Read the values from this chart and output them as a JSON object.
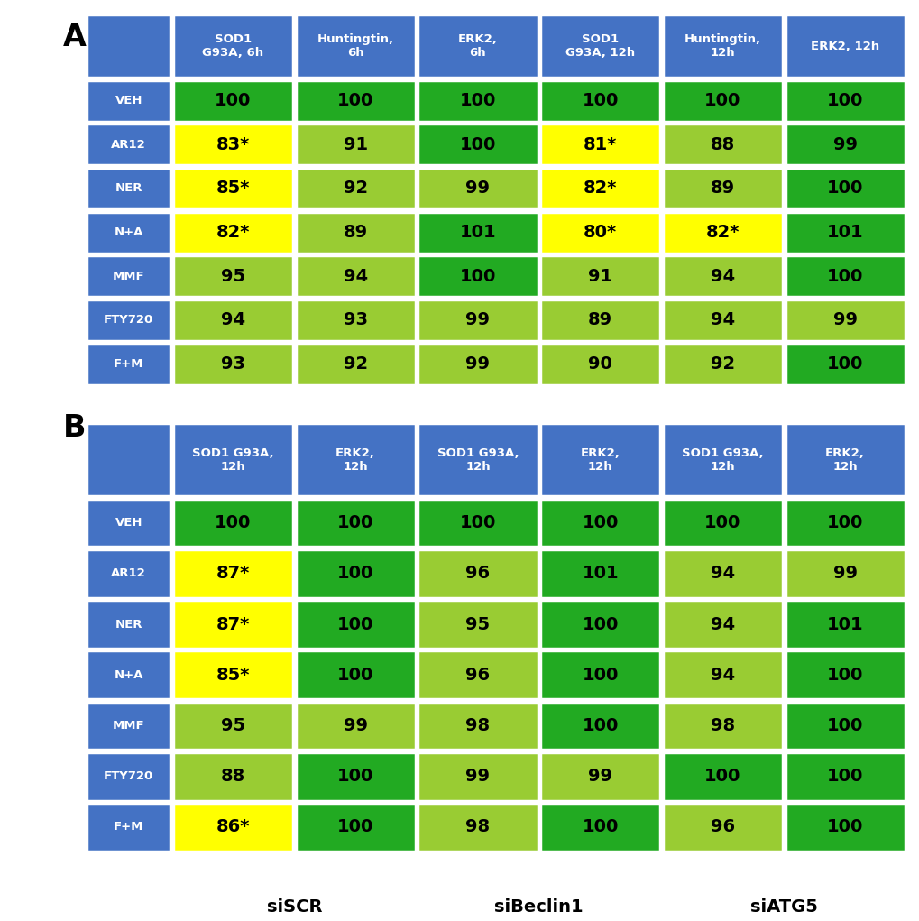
{
  "table_A": {
    "headers": [
      "SOD1\nG93A, 6h",
      "Huntingtin,\n6h",
      "ERK2,\n6h",
      "SOD1\nG93A, 12h",
      "Huntingtin,\n12h",
      "ERK2, 12h"
    ],
    "row_labels": [
      "VEH",
      "AR12",
      "NER",
      "N+A",
      "MMF",
      "FTY720",
      "F+M"
    ],
    "values": [
      [
        "100",
        "100",
        "100",
        "100",
        "100",
        "100"
      ],
      [
        "83*",
        "91",
        "100",
        "81*",
        "88",
        "99"
      ],
      [
        "85*",
        "92",
        "99",
        "82*",
        "89",
        "100"
      ],
      [
        "82*",
        "89",
        "101",
        "80*",
        "82*",
        "101"
      ],
      [
        "95",
        "94",
        "100",
        "91",
        "94",
        "100"
      ],
      [
        "94",
        "93",
        "99",
        "89",
        "94",
        "99"
      ],
      [
        "93",
        "92",
        "99",
        "90",
        "92",
        "100"
      ]
    ],
    "colors": [
      [
        "#22AA22",
        "#22AA22",
        "#22AA22",
        "#22AA22",
        "#22AA22",
        "#22AA22"
      ],
      [
        "#FFFF00",
        "#99CC33",
        "#22AA22",
        "#FFFF00",
        "#99CC33",
        "#22AA22"
      ],
      [
        "#FFFF00",
        "#99CC33",
        "#99CC33",
        "#FFFF00",
        "#99CC33",
        "#22AA22"
      ],
      [
        "#FFFF00",
        "#99CC33",
        "#22AA22",
        "#FFFF00",
        "#FFFF00",
        "#22AA22"
      ],
      [
        "#99CC33",
        "#99CC33",
        "#22AA22",
        "#99CC33",
        "#99CC33",
        "#22AA22"
      ],
      [
        "#99CC33",
        "#99CC33",
        "#99CC33",
        "#99CC33",
        "#99CC33",
        "#99CC33"
      ],
      [
        "#99CC33",
        "#99CC33",
        "#99CC33",
        "#99CC33",
        "#99CC33",
        "#22AA22"
      ]
    ]
  },
  "table_B": {
    "headers": [
      "SOD1 G93A,\n12h",
      "ERK2,\n12h",
      "SOD1 G93A,\n12h",
      "ERK2,\n12h",
      "SOD1 G93A,\n12h",
      "ERK2,\n12h"
    ],
    "row_labels": [
      "VEH",
      "AR12",
      "NER",
      "N+A",
      "MMF",
      "FTY720",
      "F+M"
    ],
    "values": [
      [
        "100",
        "100",
        "100",
        "100",
        "100",
        "100"
      ],
      [
        "87*",
        "100",
        "96",
        "101",
        "94",
        "99"
      ],
      [
        "87*",
        "100",
        "95",
        "100",
        "94",
        "101"
      ],
      [
        "85*",
        "100",
        "96",
        "100",
        "94",
        "100"
      ],
      [
        "95",
        "99",
        "98",
        "100",
        "98",
        "100"
      ],
      [
        "88",
        "100",
        "99",
        "99",
        "100",
        "100"
      ],
      [
        "86*",
        "100",
        "98",
        "100",
        "96",
        "100"
      ]
    ],
    "colors": [
      [
        "#22AA22",
        "#22AA22",
        "#22AA22",
        "#22AA22",
        "#22AA22",
        "#22AA22"
      ],
      [
        "#FFFF00",
        "#22AA22",
        "#99CC33",
        "#22AA22",
        "#99CC33",
        "#99CC33"
      ],
      [
        "#FFFF00",
        "#22AA22",
        "#99CC33",
        "#22AA22",
        "#99CC33",
        "#22AA22"
      ],
      [
        "#FFFF00",
        "#22AA22",
        "#99CC33",
        "#22AA22",
        "#99CC33",
        "#22AA22"
      ],
      [
        "#99CC33",
        "#99CC33",
        "#99CC33",
        "#22AA22",
        "#99CC33",
        "#22AA22"
      ],
      [
        "#99CC33",
        "#22AA22",
        "#99CC33",
        "#99CC33",
        "#22AA22",
        "#22AA22"
      ],
      [
        "#FFFF00",
        "#22AA22",
        "#99CC33",
        "#22AA22",
        "#99CC33",
        "#22AA22"
      ]
    ],
    "group_labels": [
      "siSCR",
      "siBeclin1",
      "siATG5"
    ]
  },
  "blue_color": "#4472C4",
  "bg_color": "#FFFFFF",
  "label_A": "A",
  "label_B": "B",
  "border_color": "#FFFFFF",
  "border_lw": 2.5
}
